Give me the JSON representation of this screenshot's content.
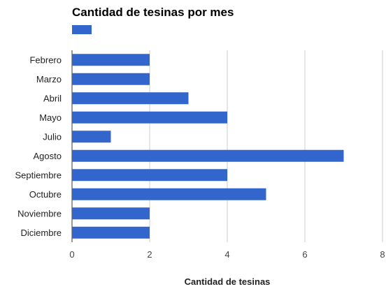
{
  "chart_data": {
    "type": "bar",
    "orientation": "horizontal",
    "title": "Cantidad de tesinas por mes",
    "xlabel": "Cantidad de tesinas",
    "ylabel": "",
    "categories": [
      "Febrero",
      "Marzo",
      "Abril",
      "Mayo",
      "Julio",
      "Agosto",
      "Septiembre",
      "Octubre",
      "Noviembre",
      "Diciembre"
    ],
    "values": [
      2,
      2,
      3,
      4,
      1,
      7,
      4,
      5,
      2,
      2
    ],
    "xlim": [
      0,
      8
    ],
    "xticks": [
      "0",
      "2",
      "4",
      "6",
      "8"
    ],
    "grid": true,
    "legend": "top-left",
    "bar_color": "#3366cc",
    "grid_color": "#cccccc"
  }
}
